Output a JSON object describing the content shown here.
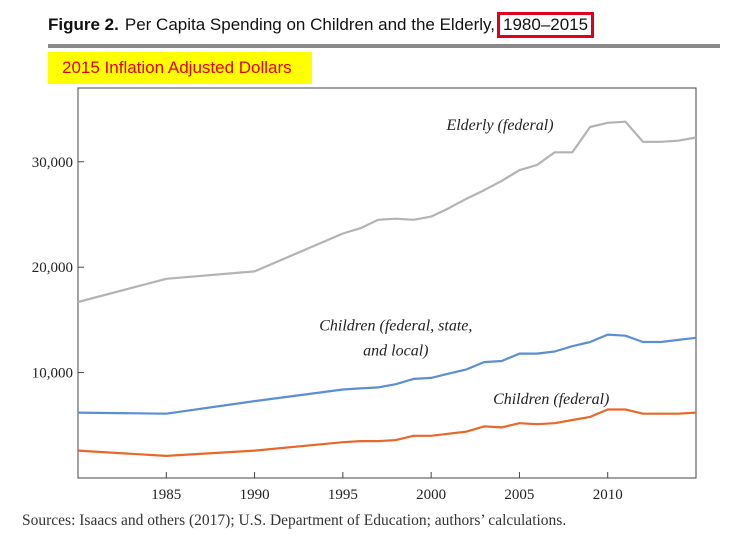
{
  "header": {
    "figure_label": "Figure 2.",
    "title_main": "Per Capita Spending on Children and the Elderly,",
    "title_years": "1980–2015"
  },
  "subtitle": "2015 Inflation Adjusted Dollars",
  "source": "Sources: Isaacs and others (2017); U.S. Department of Education; authors’ calculations.",
  "chart_data": {
    "type": "line",
    "title": "Per Capita Spending on Children and the Elderly, 1980–2015",
    "subtitle": "2015 Inflation Adjusted Dollars",
    "xlabel": "",
    "ylabel": "",
    "xlim": [
      1980,
      2015
    ],
    "ylim": [
      0,
      37000
    ],
    "x_ticks": [
      1985,
      1990,
      1995,
      2000,
      2005,
      2010
    ],
    "y_ticks": [
      10000,
      20000,
      30000
    ],
    "y_tick_labels": [
      "10,000",
      "20,000",
      "30,000"
    ],
    "grid": false,
    "x": [
      1980,
      1985,
      1990,
      1995,
      1996,
      1997,
      1998,
      1999,
      2000,
      2001,
      2002,
      2003,
      2004,
      2005,
      2006,
      2007,
      2008,
      2009,
      2010,
      2011,
      2012,
      2013,
      2014,
      2015
    ],
    "series": [
      {
        "name": "Elderly (federal)",
        "color": "#b3b3b3",
        "values": [
          16700,
          18900,
          19600,
          23200,
          23700,
          24500,
          24600,
          24500,
          24800,
          25600,
          26500,
          27300,
          28200,
          29200,
          29700,
          30900,
          30900,
          33300,
          33700,
          33800,
          31900,
          31900,
          32000,
          32300
        ]
      },
      {
        "name": "Children (federal, state, and local)",
        "color": "#5a8fd6",
        "values": [
          6200,
          6100,
          7300,
          8400,
          8500,
          8600,
          8900,
          9400,
          9500,
          9900,
          10300,
          11000,
          11100,
          11800,
          11800,
          12000,
          12500,
          12900,
          13600,
          13500,
          12900,
          12900,
          13100,
          13300
        ]
      },
      {
        "name": "Children (federal)",
        "color": "#e8682a",
        "values": [
          2600,
          2100,
          2600,
          3400,
          3500,
          3500,
          3600,
          4000,
          4000,
          4200,
          4400,
          4900,
          4800,
          5200,
          5100,
          5200,
          5500,
          5800,
          6500,
          6500,
          6100,
          6100,
          6100,
          6200
        ]
      }
    ],
    "annotations": [
      {
        "text": "Elderly (federal)",
        "series": "Elderly (federal)"
      },
      {
        "text_lines": [
          "Children (federal, state,",
          "and local)"
        ],
        "series": "Children (federal, state, and local)"
      },
      {
        "text": "Children (federal)",
        "series": "Children (federal)"
      }
    ]
  }
}
